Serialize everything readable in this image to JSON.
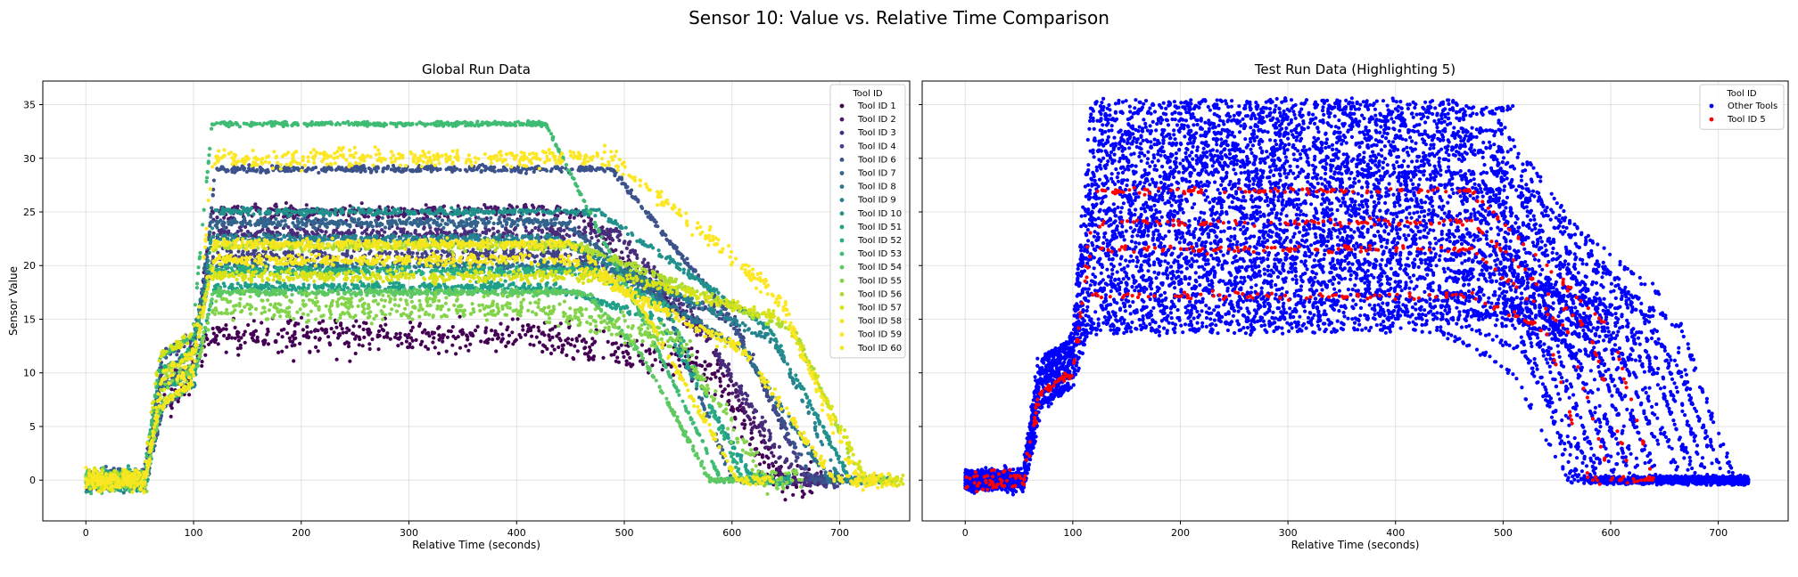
{
  "figure": {
    "title": "Sensor 10: Value vs. Relative Time Comparison"
  },
  "chart_data": [
    {
      "type": "scatter",
      "title": "Global Run Data",
      "xlabel": "Relative Time (seconds)",
      "ylabel": "Sensor Value",
      "xlim": [
        -40,
        765
      ],
      "ylim": [
        -3.8,
        37.2
      ],
      "xticks": [
        0,
        100,
        200,
        300,
        400,
        500,
        600,
        700
      ],
      "yticks": [
        0,
        5,
        10,
        15,
        20,
        25,
        30,
        35
      ],
      "grid": true,
      "legend": {
        "title": "Tool ID",
        "placement": "top-right"
      },
      "series": [
        {
          "name": "Tool ID 1",
          "color": "#440154",
          "plateau": 13.5,
          "noise": 1.6,
          "x_end": 640
        },
        {
          "name": "Tool ID 2",
          "color": "#48186a",
          "plateau": 25.0,
          "noise": 0.7,
          "x_end": 650
        },
        {
          "name": "Tool ID 3",
          "color": "#472d7b",
          "plateau": 23.0,
          "noise": 0.6,
          "x_end": 660
        },
        {
          "name": "Tool ID 4",
          "color": "#424086",
          "plateau": 21.0,
          "noise": 0.6,
          "x_end": 670
        },
        {
          "name": "Tool ID 6",
          "color": "#3b528b",
          "plateau": 29.0,
          "noise": 0.3,
          "x_end": 675
        },
        {
          "name": "Tool ID 7",
          "color": "#33638d",
          "plateau": 24.0,
          "noise": 0.4,
          "x_end": 600
        },
        {
          "name": "Tool ID 8",
          "color": "#2c728e",
          "plateau": 20.0,
          "noise": 0.4,
          "x_end": 690
        },
        {
          "name": "Tool ID 9",
          "color": "#26828e",
          "plateau": 22.5,
          "noise": 0.4,
          "x_end": 700
        },
        {
          "name": "Tool ID 10",
          "color": "#21918c",
          "plateau": 25.0,
          "noise": 0.3,
          "x_end": 710
        },
        {
          "name": "Tool ID 51",
          "color": "#1fa088",
          "plateau": 18.0,
          "noise": 0.4,
          "x_end": 620
        },
        {
          "name": "Tool ID 52",
          "color": "#28ae80",
          "plateau": 19.5,
          "noise": 0.4,
          "x_end": 610
        },
        {
          "name": "Tool ID 53",
          "color": "#3fbc73",
          "plateau": 33.2,
          "noise": 0.2,
          "x_end": 590
        },
        {
          "name": "Tool ID 54",
          "color": "#5ec962",
          "plateau": 17.5,
          "noise": 0.3,
          "x_end": 580
        },
        {
          "name": "Tool ID 55",
          "color": "#84d44b",
          "plateau": 16.0,
          "noise": 1.2,
          "x_end": 630
        },
        {
          "name": "Tool ID 56",
          "color": "#addc30",
          "plateau": 21.8,
          "noise": 0.4,
          "x_end": 720
        },
        {
          "name": "Tool ID 57",
          "color": "#d8e219",
          "plateau": 19.0,
          "noise": 0.5,
          "x_end": 725
        },
        {
          "name": "Tool ID 58",
          "color": "#f4e61e",
          "plateau": 22.0,
          "noise": 0.4,
          "x_end": 605
        },
        {
          "name": "Tool ID 59",
          "color": "#fde725",
          "plateau": 30.0,
          "noise": 0.8,
          "x_end": 715
        },
        {
          "name": "Tool ID 60",
          "color": "#f6e620",
          "plateau": 20.5,
          "noise": 0.5,
          "x_end": 695
        }
      ]
    },
    {
      "type": "scatter",
      "title": "Test Run Data (Highlighting 5)",
      "xlabel": "Relative Time (seconds)",
      "ylabel": "",
      "xlim": [
        -40,
        765
      ],
      "ylim": [
        -3.8,
        37.2
      ],
      "xticks": [
        0,
        100,
        200,
        300,
        400,
        500,
        600,
        700
      ],
      "yticks": [
        0,
        5,
        10,
        15,
        20,
        25,
        30,
        35
      ],
      "grid": true,
      "legend": {
        "title": "Tool ID",
        "placement": "top-right"
      },
      "series": [
        {
          "name": "Other Tools",
          "color": "#0000ff",
          "plateau_min": 14.0,
          "plateau_max": 35.2,
          "x_end": 728
        },
        {
          "name": "Tool ID 5",
          "color": "#ff0000",
          "plateau_min": 17.2,
          "plateau_max": 27.0,
          "x_end": 640
        }
      ]
    }
  ]
}
